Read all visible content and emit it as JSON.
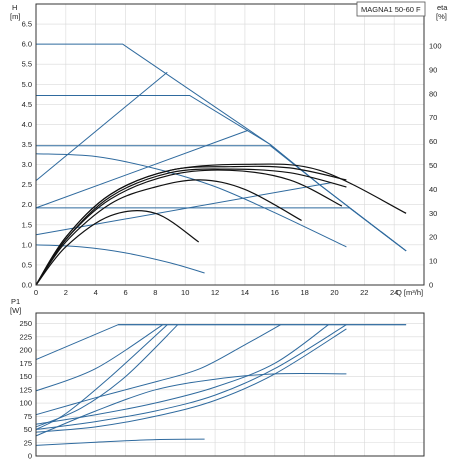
{
  "chart_data": [
    {
      "type": "line",
      "title": "MAGNA1 50-60 F",
      "xlabel": "Q [m³/h]",
      "ylabel_left_1": "H",
      "ylabel_left_2": "[m]",
      "ylabel_right_1": "eta",
      "ylabel_right_2": "[%]",
      "xlim": [
        0,
        26
      ],
      "ylim_left": [
        0,
        7
      ],
      "ylim_right": [
        0,
        117.6
      ],
      "x_ticks": [
        0,
        2,
        4,
        6,
        8,
        10,
        12,
        14,
        16,
        18,
        20,
        22,
        24
      ],
      "y_ticks_left": [
        0.0,
        0.5,
        1.0,
        1.5,
        2.0,
        2.5,
        3.0,
        3.5,
        4.0,
        4.5,
        5.0,
        5.5,
        6.0,
        6.5
      ],
      "y_ticks_left_labels": [
        "0.0",
        "0.5",
        "1.0",
        "1.5",
        "2.0",
        "2.5",
        "3.0",
        "3.5",
        "4.0",
        "4.5",
        "5.0",
        "5.5",
        "6.0",
        "6.5"
      ],
      "y_ticks_right": [
        0,
        10,
        20,
        30,
        40,
        50,
        60,
        70,
        80,
        90,
        100
      ],
      "grid": true,
      "series": [
        {
          "group": "head",
          "x": [
            0,
            5.8,
            15.7,
            19,
            24.8
          ],
          "y": [
            6.0,
            6.0,
            3.5,
            2.5,
            0.85
          ]
        },
        {
          "group": "head",
          "x": [
            0,
            10.3,
            15.7,
            19,
            24.8
          ],
          "y": [
            4.72,
            4.72,
            3.5,
            2.5,
            0.85
          ]
        },
        {
          "group": "head",
          "x": [
            0,
            15.7,
            19,
            24.8
          ],
          "y": [
            3.47,
            3.47,
            2.5,
            0.85
          ]
        },
        {
          "group": "head",
          "x": [
            0,
            21,
            24.8
          ],
          "y": [
            1.92,
            1.92,
            0.85
          ]
        },
        {
          "group": "head",
          "x": [
            0,
            4,
            8,
            12,
            16,
            20.8
          ],
          "y": [
            3.27,
            3.2,
            2.9,
            2.45,
            1.8,
            0.95
          ]
        },
        {
          "group": "head",
          "x": [
            0,
            3,
            6,
            9,
            11.3
          ],
          "y": [
            1.0,
            0.95,
            0.8,
            0.55,
            0.3
          ]
        },
        {
          "group": "system",
          "x": [
            0,
            8.8
          ],
          "y": [
            2.6,
            5.3
          ]
        },
        {
          "group": "system",
          "x": [
            0,
            14.2
          ],
          "y": [
            1.92,
            3.85
          ]
        },
        {
          "group": "system",
          "x": [
            0,
            19.8
          ],
          "y": [
            1.25,
            2.55
          ]
        },
        {
          "group": "efficiency",
          "x": [
            0,
            2,
            5,
            8,
            10.9
          ],
          "y": [
            0,
            16,
            29,
            30,
            18
          ]
        },
        {
          "group": "efficiency",
          "x": [
            0,
            2,
            5,
            8,
            11,
            14,
            17.8
          ],
          "y": [
            0,
            18,
            34,
            41,
            44,
            40,
            27
          ]
        },
        {
          "group": "efficiency",
          "x": [
            0,
            2,
            5,
            9,
            13,
            17,
            20.5
          ],
          "y": [
            0,
            19,
            36,
            46,
            48,
            44,
            33
          ]
        },
        {
          "group": "efficiency",
          "x": [
            0,
            2,
            5,
            9,
            13,
            17,
            20.8
          ],
          "y": [
            0,
            19,
            37,
            47,
            48.5,
            47,
            41
          ]
        },
        {
          "group": "efficiency",
          "x": [
            0,
            2,
            5,
            9,
            13,
            17,
            20.8
          ],
          "y": [
            0,
            20,
            38,
            48,
            49.5,
            49,
            44
          ]
        },
        {
          "group": "efficiency",
          "x": [
            0,
            2,
            5,
            9,
            14,
            19,
            24.8
          ],
          "y": [
            0,
            20,
            38,
            48,
            50.5,
            48,
            30
          ]
        }
      ]
    },
    {
      "type": "line",
      "title": "",
      "ylabel_1": "P1",
      "ylabel_2": "[W]",
      "xlim": [
        0,
        26
      ],
      "ylim": [
        0,
        270
      ],
      "y_ticks": [
        0,
        25,
        50,
        75,
        100,
        125,
        150,
        175,
        200,
        225,
        250
      ],
      "x_ticks": [
        0,
        2,
        4,
        6,
        8,
        10,
        12,
        14,
        16,
        18,
        20,
        22,
        24
      ],
      "grid": true,
      "series": [
        {
          "x": [
            0,
            5.5,
            24.8
          ],
          "y": [
            182,
            248,
            248
          ]
        },
        {
          "x": [
            0,
            4,
            8.5
          ],
          "y": [
            123,
            165,
            248
          ]
        },
        {
          "x": [
            0,
            4,
            8,
            11,
            14,
            16.4
          ],
          "y": [
            78,
            110,
            140,
            165,
            210,
            248
          ]
        },
        {
          "x": [
            0,
            4,
            8,
            12,
            16,
            19.6
          ],
          "y": [
            60,
            78,
            100,
            130,
            175,
            248
          ]
        },
        {
          "x": [
            0,
            4,
            8,
            12,
            16,
            20.8
          ],
          "y": [
            50,
            65,
            85,
            115,
            165,
            248
          ]
        },
        {
          "x": [
            0,
            4,
            8,
            12,
            16,
            20.8
          ],
          "y": [
            45,
            55,
            75,
            105,
            155,
            240
          ]
        },
        {
          "x": [
            0,
            4,
            8,
            12,
            16,
            20.8
          ],
          "y": [
            38,
            85,
            125,
            145,
            155,
            155
          ]
        },
        {
          "x": [
            0,
            4,
            8,
            11.3
          ],
          "y": [
            20,
            26,
            31,
            32
          ]
        },
        {
          "x": [
            0,
            2,
            5,
            8.8
          ],
          "y": [
            50,
            80,
            150,
            248
          ]
        },
        {
          "x": [
            0,
            3,
            6,
            9.5
          ],
          "y": [
            55,
            90,
            150,
            248
          ]
        }
      ]
    }
  ]
}
